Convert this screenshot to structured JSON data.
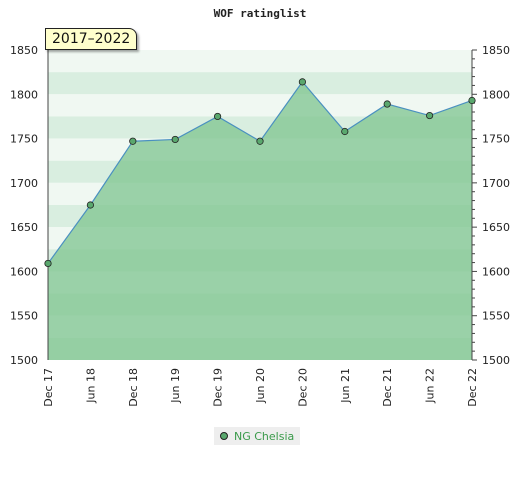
{
  "chart_data": {
    "type": "area",
    "title": "WOF ratinglist",
    "range_label": "2017–2022",
    "x": [
      "Dec 17",
      "Jun 18",
      "Dec 18",
      "Jun 19",
      "Dec 19",
      "Jun 20",
      "Dec 20",
      "Jun 21",
      "Dec 21",
      "Jun 22",
      "Dec 22"
    ],
    "series": [
      {
        "name": "NG Chelsia",
        "values": [
          1609,
          1675,
          1747,
          1749,
          1775,
          1747,
          1814,
          1758,
          1789,
          1776,
          1793
        ]
      }
    ],
    "ylim": [
      1500,
      1850
    ],
    "yticks": [
      1500,
      1550,
      1600,
      1650,
      1700,
      1750,
      1800,
      1850
    ],
    "colors": {
      "area": "#7ec48f",
      "line": "#4a90c0",
      "marker": "#5aa86e",
      "legend_text": "#3a9a4a"
    },
    "grid": true,
    "legend_position": "bottom"
  }
}
